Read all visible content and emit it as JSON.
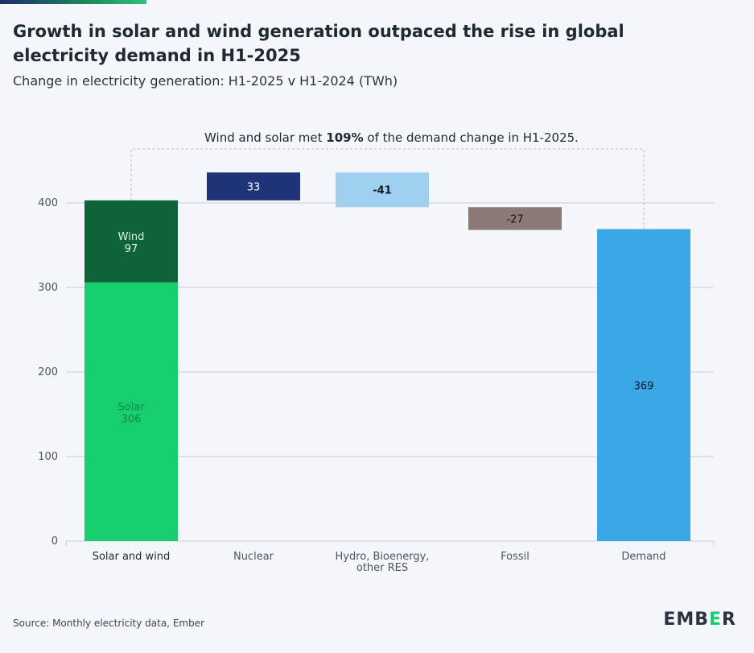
{
  "header": {
    "title": "Growth in solar and wind generation outpaced the rise in global electricity demand in H1-2025",
    "subtitle": "Change in electricity generation: H1-2025 v H1-2024 (TWh)"
  },
  "footer": {
    "source": "Source: Monthly electricity data, Ember",
    "logo_text_1": "EMB",
    "logo_text_2": "E",
    "logo_text_3": "R"
  },
  "annotation": {
    "prefix": "Wind and solar met ",
    "bold": "109%",
    "suffix": " of the demand change in H1-2025."
  },
  "colors": {
    "solar": "#18cf6f",
    "wind": "#0e6436",
    "nuclear": "#1f3476",
    "hydro": "#9fd0ef",
    "fossil": "#8c7a76",
    "demand": "#3aa8e6",
    "grid": "#c8ccd9",
    "background": "#f5f6fa"
  },
  "chart_data": {
    "type": "bar",
    "subtype": "waterfall",
    "categories": [
      "Solar and wind",
      "Nuclear",
      "Hydro, Bioenergy, other RES",
      "Fossil",
      "Demand"
    ],
    "category_label_lines": [
      [
        "Solar and wind"
      ],
      [
        "Nuclear"
      ],
      [
        "Hydro, Bioenergy,",
        "other RES"
      ],
      [
        "Fossil"
      ],
      [
        "Demand"
      ]
    ],
    "ylim": [
      0,
      400
    ],
    "yticks": [
      0,
      100,
      200,
      300,
      400
    ],
    "grid": true,
    "bars": [
      {
        "category": "Solar and wind",
        "name": "Solar",
        "base": 0,
        "value": 306,
        "label_name": "Solar",
        "label_value": "306",
        "color_key": "solar"
      },
      {
        "category": "Solar and wind",
        "name": "Wind",
        "base": 306,
        "value": 97,
        "label_name": "Wind",
        "label_value": "97",
        "color_key": "wind"
      },
      {
        "category": "Nuclear",
        "name": "Nuclear",
        "base": 403,
        "value": 33,
        "label_value": "33",
        "color_key": "nuclear"
      },
      {
        "category": "Hydro, Bioenergy, other RES",
        "name": "Hydro, Bioenergy, other RES",
        "base": 436,
        "value": -41,
        "label_value": "-41",
        "color_key": "hydro"
      },
      {
        "category": "Fossil",
        "name": "Fossil",
        "base": 395,
        "value": -27,
        "label_value": "-27",
        "color_key": "fossil"
      },
      {
        "category": "Demand",
        "name": "Demand",
        "base": 0,
        "value": 369,
        "label_value": "369",
        "color_key": "demand"
      }
    ],
    "bracket": {
      "from_category": "Solar and wind",
      "to_category": "Demand",
      "from_value": 403,
      "to_value": 369
    }
  }
}
